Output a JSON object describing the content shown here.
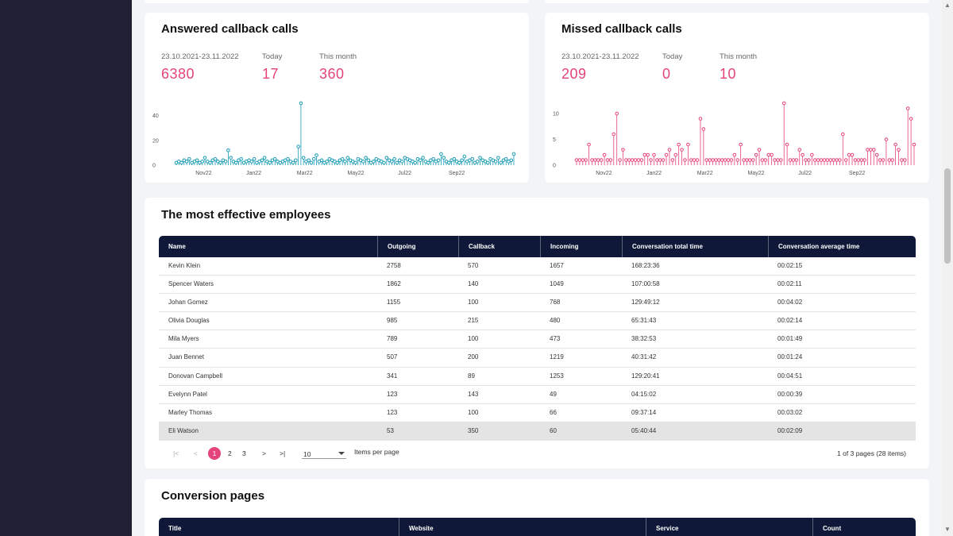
{
  "answered": {
    "title": "Answered callback calls",
    "stats": [
      {
        "label": "23.10.2021-23.11.2022",
        "value": "6380"
      },
      {
        "label": "Today",
        "value": "17"
      },
      {
        "label": "This month",
        "value": "360"
      }
    ],
    "y_ticks": [
      "40",
      "20",
      "0"
    ],
    "x_ticks": [
      "Nov22",
      "Jan22",
      "Mar22",
      "May22",
      "Jul22",
      "Sep22"
    ],
    "color": "#1a9bb5"
  },
  "missed": {
    "title": "Missed callback calls",
    "stats": [
      {
        "label": "23.10.2021-23.11.2022",
        "value": "209"
      },
      {
        "label": "Today",
        "value": "0"
      },
      {
        "label": "This month",
        "value": "10"
      }
    ],
    "y_ticks": [
      "10",
      "5",
      "0"
    ],
    "x_ticks": [
      "Nov22",
      "Jan22",
      "Mar22",
      "May22",
      "Jul22",
      "Sep22"
    ],
    "color": "#e5437b"
  },
  "chart_data": [
    {
      "type": "scatter",
      "title": "Answered callback calls",
      "xlabel": "",
      "ylabel": "",
      "x_ticks": [
        "Nov22",
        "Jan22",
        "Mar22",
        "May22",
        "Jul22",
        "Sep22"
      ],
      "ylim": [
        0,
        50
      ],
      "y_ticks": [
        0,
        20,
        40
      ],
      "values": [
        2,
        3,
        2,
        4,
        3,
        5,
        2,
        3,
        4,
        2,
        3,
        6,
        3,
        2,
        4,
        5,
        3,
        2,
        4,
        3,
        12,
        6,
        3,
        2,
        4,
        5,
        2,
        3,
        4,
        3,
        5,
        2,
        3,
        4,
        6,
        3,
        2,
        4,
        5,
        3,
        2,
        3,
        4,
        5,
        3,
        2,
        4,
        15,
        50,
        6,
        3,
        4,
        2,
        5,
        8,
        3,
        4,
        2,
        3,
        5,
        4,
        3,
        2,
        4,
        5,
        3,
        6,
        4,
        3,
        2,
        5,
        4,
        3,
        6,
        4,
        2,
        3,
        5,
        4,
        3,
        2,
        6,
        4,
        3,
        5,
        2,
        4,
        3,
        6,
        5,
        4,
        3,
        2,
        5,
        4,
        6,
        3,
        2,
        4,
        5,
        3,
        4,
        9,
        6,
        3,
        2,
        4,
        5,
        3,
        2,
        4,
        7,
        3,
        4,
        5,
        2,
        3,
        6,
        4,
        3,
        2,
        5,
        4,
        3,
        6,
        2,
        4,
        5,
        3,
        4,
        9
      ]
    },
    {
      "type": "scatter",
      "title": "Missed callback calls",
      "xlabel": "",
      "ylabel": "",
      "x_ticks": [
        "Nov22",
        "Jan22",
        "Mar22",
        "May22",
        "Jul22",
        "Sep22"
      ],
      "ylim": [
        0,
        12
      ],
      "y_ticks": [
        0,
        5,
        10
      ],
      "values": [
        1,
        1,
        1,
        1,
        4,
        1,
        1,
        1,
        1,
        2,
        1,
        1,
        6,
        10,
        1,
        3,
        1,
        1,
        1,
        1,
        1,
        1,
        2,
        2,
        1,
        2,
        1,
        1,
        1,
        2,
        3,
        1,
        2,
        4,
        3,
        1,
        4,
        1,
        1,
        1,
        9,
        7,
        1,
        1,
        1,
        1,
        1,
        1,
        1,
        1,
        1,
        2,
        1,
        4,
        1,
        1,
        1,
        1,
        2,
        3,
        1,
        1,
        2,
        2,
        1,
        1,
        1,
        12,
        4,
        1,
        1,
        1,
        3,
        2,
        1,
        1,
        2,
        1,
        1,
        1,
        1,
        1,
        1,
        1,
        1,
        1,
        6,
        1,
        2,
        2,
        1,
        1,
        1,
        1,
        3,
        3,
        3,
        2,
        1,
        1,
        5,
        1,
        1,
        4,
        3,
        1,
        1,
        11,
        9,
        4
      ]
    }
  ],
  "employees": {
    "title": "The most effective employees",
    "columns": [
      "Name",
      "Outgoing",
      "Callback",
      "Incoming",
      "Conversation total time",
      "Conversation average time"
    ],
    "rows": [
      [
        "Kevin Klein",
        "2758",
        "570",
        "1657",
        "168:23:36",
        "00:02:15"
      ],
      [
        "Spencer Waters",
        "1862",
        "140",
        "1049",
        "107:00:58",
        "00:02:11"
      ],
      [
        "Johan Gomez",
        "1155",
        "100",
        "768",
        "129:49:12",
        "00:04:02"
      ],
      [
        "Olivia Douglas",
        "985",
        "215",
        "480",
        "65:31:43",
        "00:02:14"
      ],
      [
        "Mila Myers",
        "789",
        "100",
        "473",
        "38:32:53",
        "00:01:49"
      ],
      [
        "Juan Bennet",
        "507",
        "200",
        "1219",
        "40:31:42",
        "00:01:24"
      ],
      [
        "Donovan Campbell",
        "341",
        "89",
        "1253",
        "129:20:41",
        "00:04:51"
      ],
      [
        "Evelynn Patel",
        "123",
        "143",
        "49",
        "04:15:02",
        "00:00:39"
      ],
      [
        "Marley Thomas",
        "123",
        "100",
        "66",
        "09:37:14",
        "00:03:02"
      ],
      [
        "Eli Watson",
        "53",
        "350",
        "60",
        "05:40:44",
        "00:02:09"
      ]
    ],
    "pager": {
      "first": "|<",
      "prev": "<",
      "pages": [
        "1",
        "2",
        "3"
      ],
      "next": ">",
      "last": ">|",
      "per_page_value": "10",
      "per_page_label": "Items per page",
      "summary": "1 of 3 pages (28 items)"
    }
  },
  "conversion": {
    "title": "Conversion pages",
    "columns": [
      "Title",
      "Website",
      "Service",
      "Count"
    ]
  }
}
